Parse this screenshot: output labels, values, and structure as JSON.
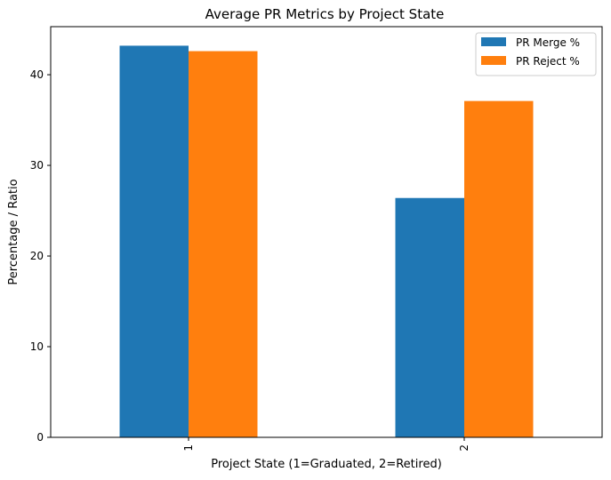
{
  "chart_data": {
    "type": "bar",
    "title": "Average PR Metrics by Project State",
    "xlabel": "Project State (1=Graduated, 2=Retired)",
    "ylabel": "Percentage / Ratio",
    "categories": [
      "1",
      "2"
    ],
    "series": [
      {
        "name": "PR Merge %",
        "color": "#1f77b4",
        "values": [
          43.2,
          26.4
        ]
      },
      {
        "name": "PR Reject %",
        "color": "#ff7f0e",
        "values": [
          42.6,
          37.1
        ]
      }
    ],
    "ylim": [
      0,
      45.3
    ],
    "yticks": [
      0,
      10,
      20,
      30,
      40
    ],
    "grid": false,
    "legend_position": "top-right"
  }
}
